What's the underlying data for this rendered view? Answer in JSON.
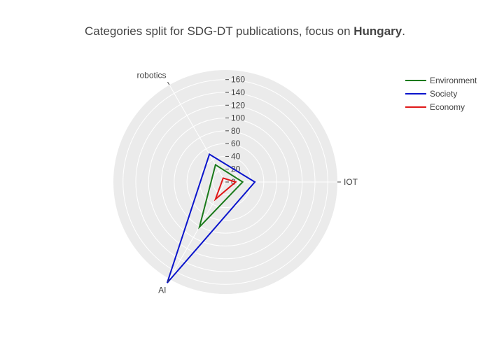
{
  "chart_data": {
    "type": "radar",
    "title": {
      "prefix": "Categories split for SDG-DT publications, focus on ",
      "emphasis": "Hungary",
      "suffix": "."
    },
    "axes": [
      "IOT",
      "robotics",
      "AI"
    ],
    "radial_range": [
      0,
      175
    ],
    "radial_ticks": [
      0,
      20,
      40,
      60,
      80,
      100,
      120,
      140,
      160
    ],
    "grid": true,
    "legend_position": "top-right",
    "series": [
      {
        "name": "Environment",
        "color": "#1a7a1a",
        "values": [
          27,
          31,
          81
        ]
      },
      {
        "name": "Society",
        "color": "#0a14cc",
        "values": [
          46,
          50,
          182
        ]
      },
      {
        "name": "Economy",
        "color": "#e01818",
        "values": [
          16,
          7,
          31
        ]
      }
    ]
  }
}
